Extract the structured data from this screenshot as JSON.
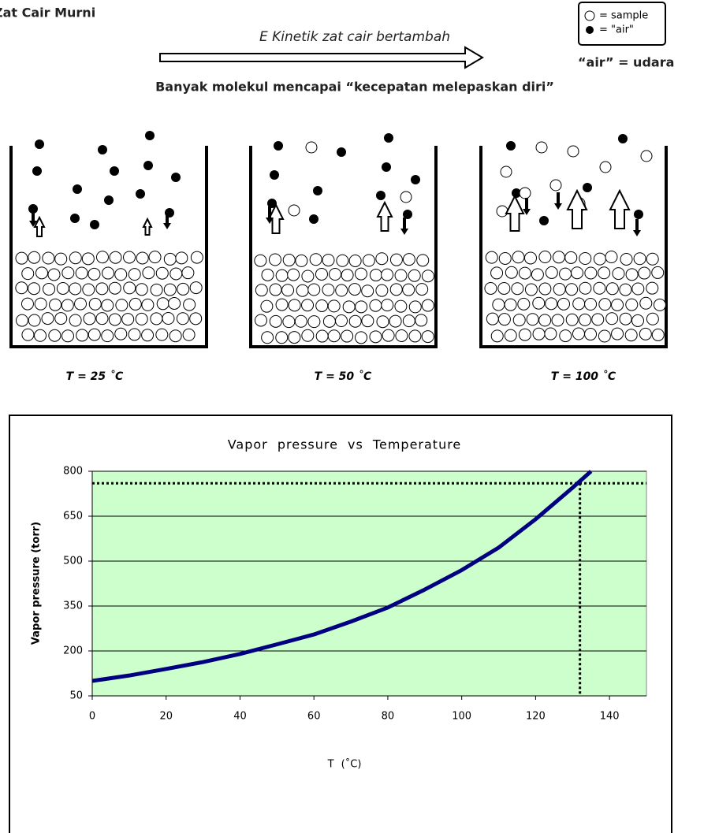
{
  "header": {
    "title": "Zat Cair Murni",
    "arrow_label": "E Kinetik zat cair bertambah",
    "subtitle": "Banyak molekul mencapai “kecepatan melepaskan diri”",
    "legend": {
      "sample": "= sample",
      "air": "= \"air\"",
      "note": "“air” = udara"
    }
  },
  "beakers": [
    {
      "label": "T = 25 ˚C"
    },
    {
      "label": "T = 50 ˚C"
    },
    {
      "label": "T = 100 ˚C"
    }
  ],
  "chart_data": {
    "type": "line",
    "title": "Vapor pressure vs Temperature",
    "x_label": "T (˚C)",
    "y_label": "Vapor pressure (torr)",
    "x": [
      0,
      10,
      20,
      30,
      40,
      50,
      60,
      70,
      80,
      90,
      100,
      110,
      120,
      130,
      135
    ],
    "values": [
      100,
      118,
      140,
      163,
      190,
      222,
      255,
      298,
      345,
      405,
      470,
      545,
      640,
      745,
      800
    ],
    "color": "#000080",
    "background": "#ccffcc",
    "xlim": [
      0,
      150
    ],
    "xticks": [
      0,
      20,
      40,
      60,
      80,
      100,
      120,
      140
    ],
    "ylim": [
      50,
      800
    ],
    "yticks": [
      50,
      200,
      350,
      500,
      650,
      800
    ],
    "grid": true,
    "reference_lines": {
      "y": 760,
      "x": 132,
      "color": "#000000"
    }
  }
}
